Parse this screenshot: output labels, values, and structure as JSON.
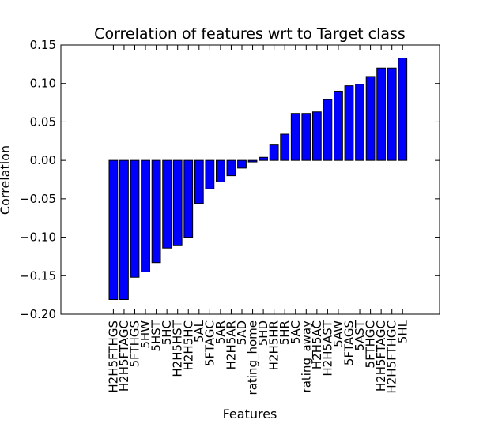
{
  "chart_data": {
    "type": "bar",
    "title": "Correlation of features wrt to Target class",
    "xlabel": "Features",
    "ylabel": "Correlation",
    "ylim": [
      -0.2,
      0.15
    ],
    "yticks": [
      -0.2,
      -0.15,
      -0.1,
      -0.05,
      0.0,
      0.05,
      0.1,
      0.15
    ],
    "ytick_labels": [
      "−0.20",
      "−0.15",
      "−0.10",
      "−0.05",
      "0.00",
      "0.05",
      "0.10",
      "0.15"
    ],
    "bar_color": "#0000ff",
    "grid": false,
    "categories": [
      "H2H5FTHGS",
      "H2H5FTAGC",
      "5FTHGS",
      "5HW",
      "5HST",
      "5HC",
      "H2H5HST",
      "H2H5HC",
      "5AL",
      "5FTAGC",
      "5AR",
      "H2H5AR",
      "5AD",
      "rating_home",
      "5HD",
      "H2H5HR",
      "5HR",
      "5AC",
      "rating_away",
      "H2H5AC",
      "H2H5AST",
      "5AW",
      "5FTAGS",
      "5AST",
      "5FTHGC",
      "H2H5FTAGC",
      "H2H5FTHGC",
      "5HL"
    ],
    "values": [
      -0.181,
      -0.181,
      -0.152,
      -0.145,
      -0.133,
      -0.114,
      -0.111,
      -0.1,
      -0.056,
      -0.037,
      -0.028,
      -0.02,
      -0.01,
      -0.002,
      0.004,
      0.02,
      0.034,
      0.061,
      0.061,
      0.063,
      0.079,
      0.09,
      0.097,
      0.099,
      0.109,
      0.12,
      0.12,
      0.133
    ]
  }
}
